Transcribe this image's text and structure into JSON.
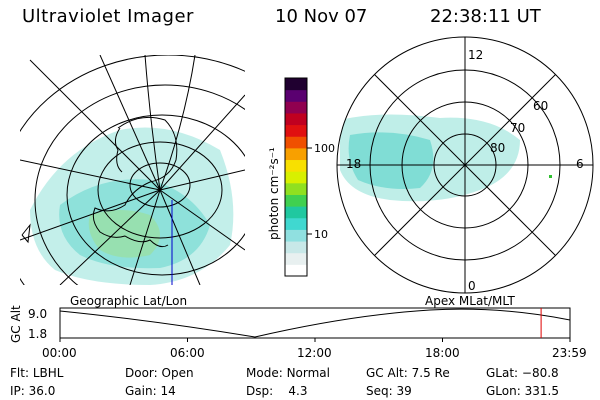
{
  "header": {
    "instrument": "Ultraviolet Imager",
    "date": "10 Nov 07",
    "time": "22:38:11 UT"
  },
  "geo_panel": {
    "label": "Geographic Lat/Lon"
  },
  "apex_panel": {
    "label": "Apex  MLat/MLT",
    "mlt_labels": {
      "top": "12",
      "bottom": "0",
      "left": "18",
      "right": "6"
    },
    "lat_labels": [
      "60",
      "70",
      "80"
    ]
  },
  "colorbar": {
    "unit_label": "photon cm⁻²s⁻¹",
    "ticks": [
      "100",
      "10"
    ],
    "colors": [
      "#ffffff",
      "#e8f0f0",
      "#c8e8e8",
      "#90e0e0",
      "#40d8d0",
      "#20c8a0",
      "#40d050",
      "#90e020",
      "#d8f000",
      "#f8e000",
      "#f8a000",
      "#f05000",
      "#e01010",
      "#c00020",
      "#900050",
      "#5a0070",
      "#200030"
    ]
  },
  "altitude_plot": {
    "ylabel": "GC Alt",
    "yticks": [
      "9.0",
      "1.8"
    ],
    "xticks": [
      "00:00",
      "06:00",
      "12:00",
      "18:00",
      "23:59"
    ],
    "marker_color": "#e00000",
    "marker_time_h": 22.64
  },
  "status": {
    "filter_label": "Flt:",
    "filter": "LBHL",
    "ip_label": "IP:",
    "ip": "36.0",
    "door_label": "Door:",
    "door": "Open",
    "gain_label": "Gain:",
    "gain": "14",
    "mode_label": "Mode:",
    "mode": "Normal",
    "dsp_label": "Dsp:",
    "dsp": "4.3",
    "gcalt_label": "GC Alt:",
    "gcalt": "7.5 Re",
    "seq_label": "Seq:",
    "seq": "39",
    "glat_label": "GLat:",
    "glat": "−80.8",
    "glon_label": "GLon:",
    "glon": "331.5"
  }
}
